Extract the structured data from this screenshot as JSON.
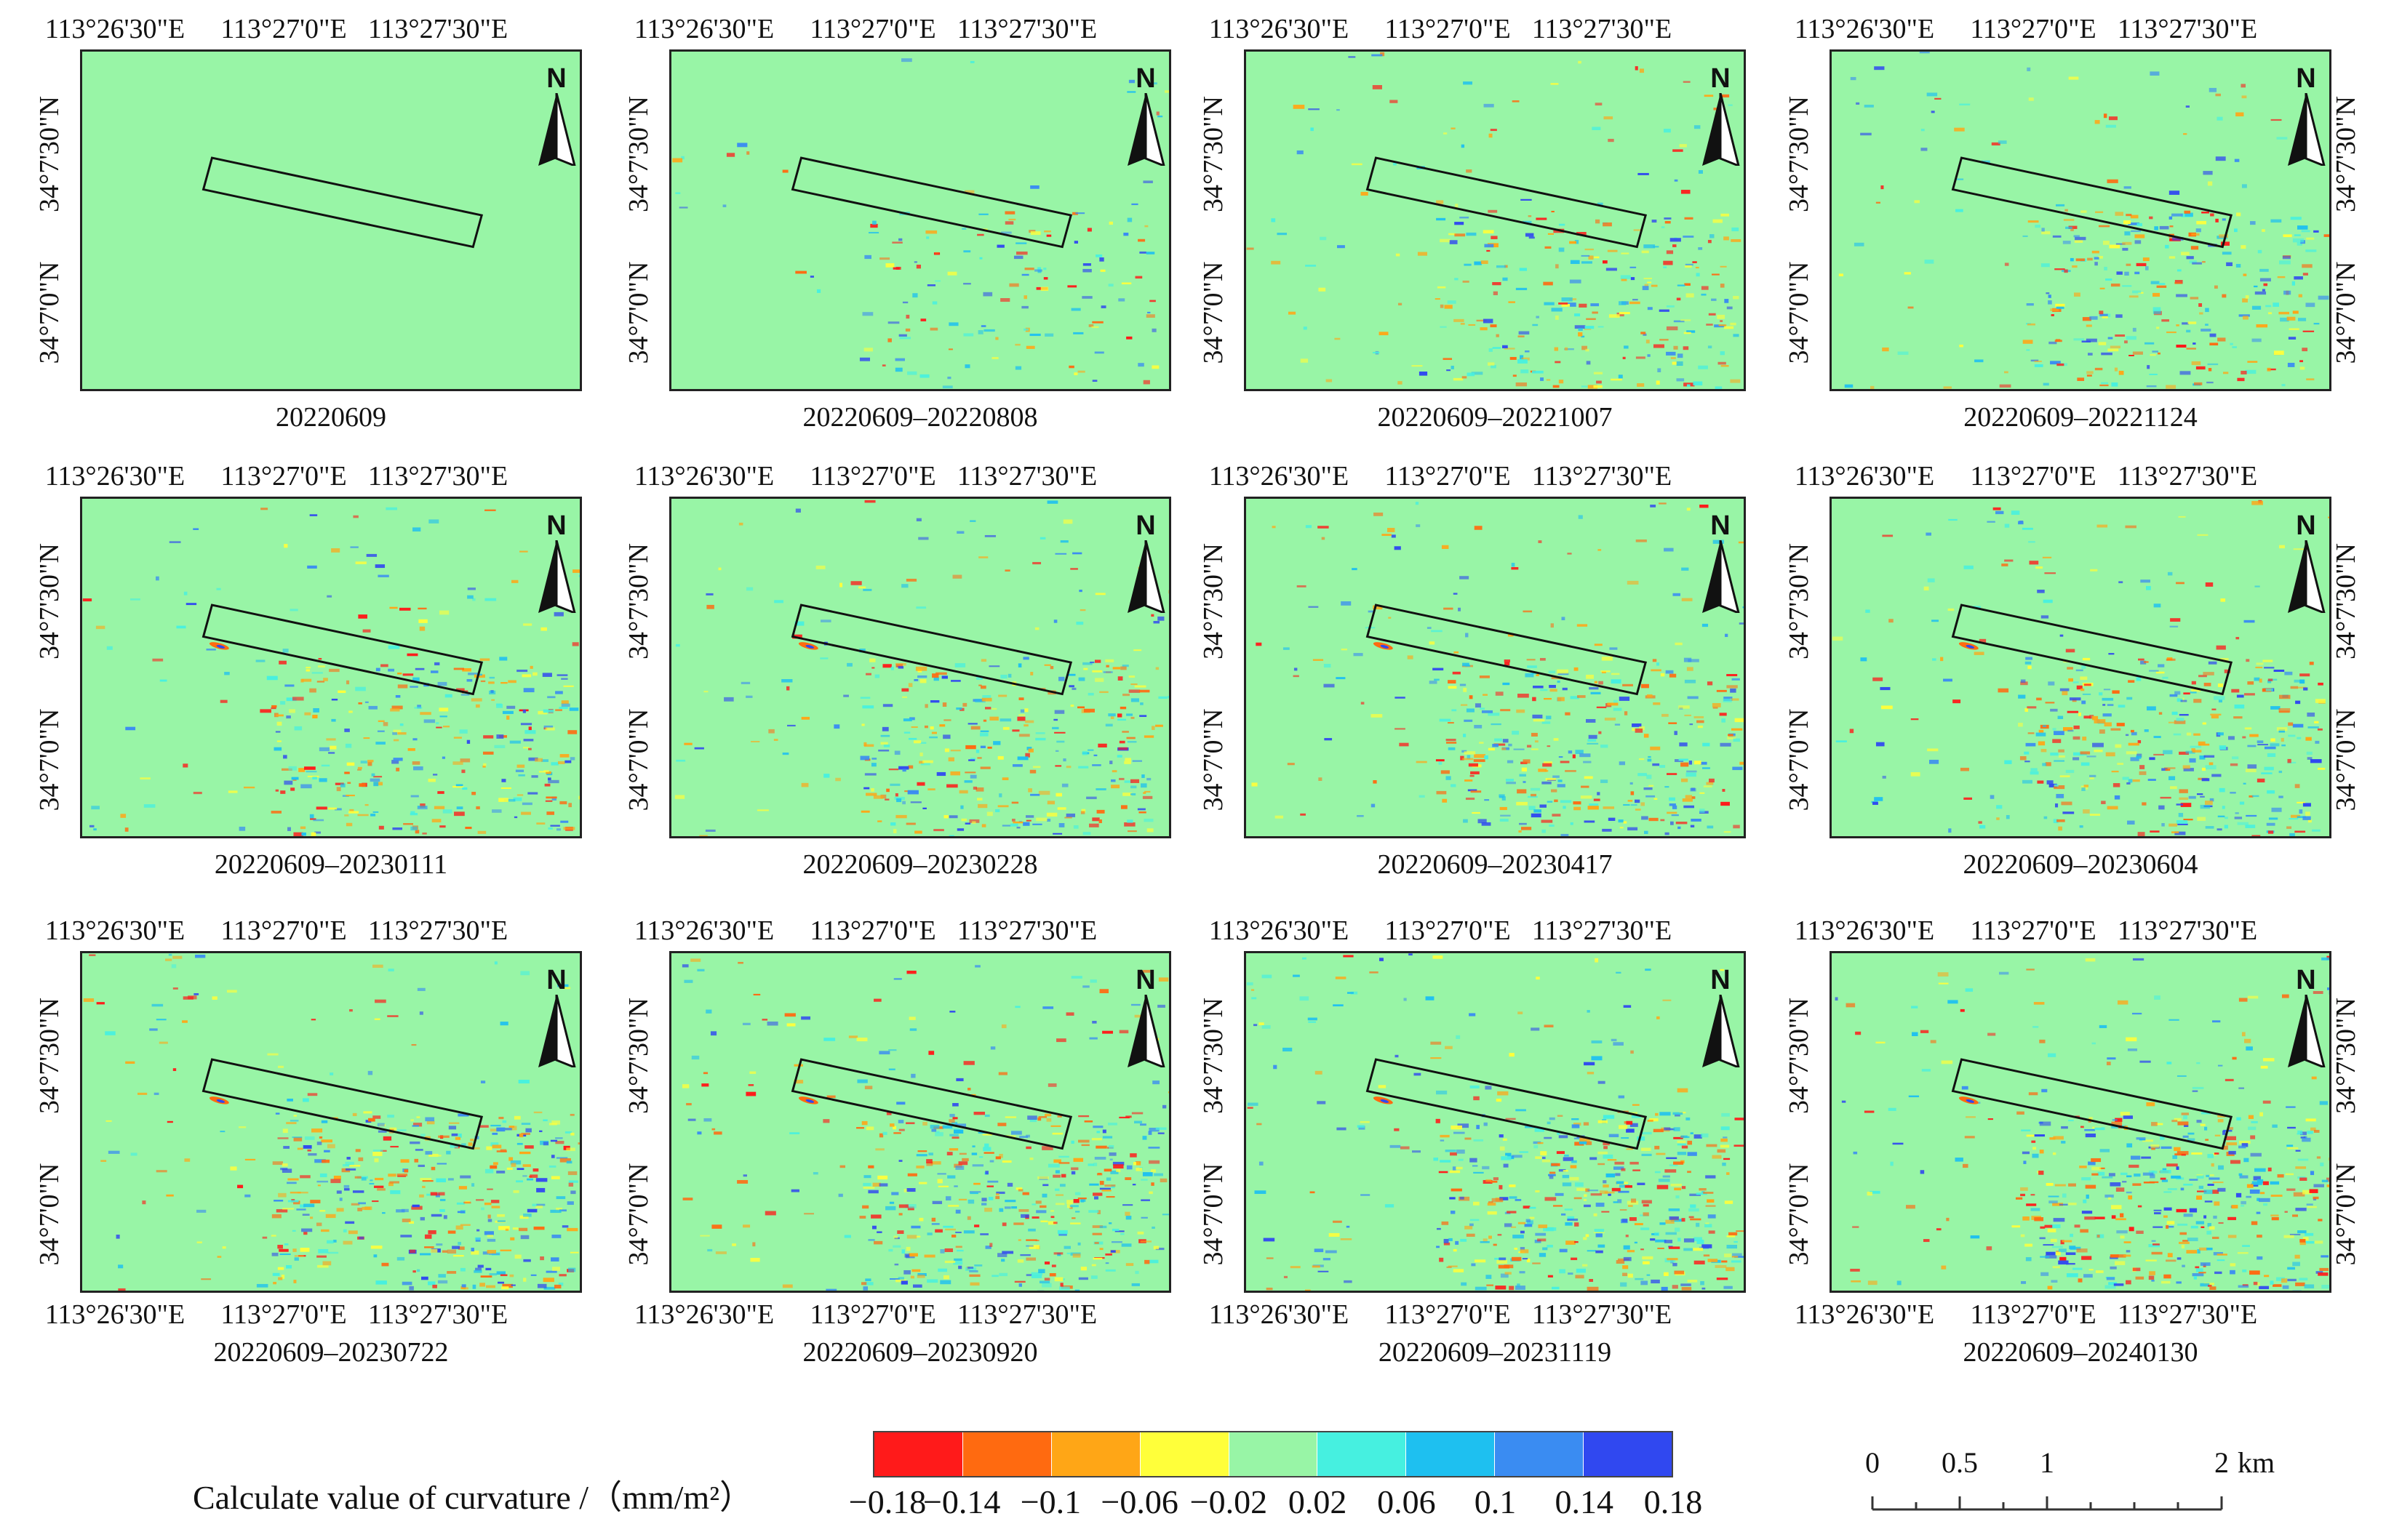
{
  "figure": {
    "lon_ticks": [
      "113°26'30\"E",
      "113°27'0\"E",
      "113°27'30\"E"
    ],
    "lat_ticks": [
      "34°7'30\"N",
      "34°7'0\"N"
    ],
    "north_label": "N",
    "panels": [
      {
        "date": "20220609",
        "intensity": 0.0
      },
      {
        "date": "20220609–20220808",
        "intensity": 0.3
      },
      {
        "date": "20220609–20221007",
        "intensity": 0.6
      },
      {
        "date": "20220609–20221124",
        "intensity": 0.65
      },
      {
        "date": "20220609–20230111",
        "intensity": 0.7
      },
      {
        "date": "20220609–20230228",
        "intensity": 0.75
      },
      {
        "date": "20220609–20230417",
        "intensity": 0.8
      },
      {
        "date": "20220609–20230604",
        "intensity": 0.85
      },
      {
        "date": "20220609–20230722",
        "intensity": 0.9
      },
      {
        "date": "20220609–20230920",
        "intensity": 0.95
      },
      {
        "date": "20220609–20231119",
        "intensity": 1.0
      },
      {
        "date": "20220609–20240130",
        "intensity": 1.0
      }
    ]
  },
  "legend": {
    "title": "Calculate value of curvature /（mm/m²）",
    "ticks": [
      "−0.18",
      "−0.14",
      "−0.1",
      "−0.06",
      "−0.02",
      "0.02",
      "0.06",
      "0.1",
      "0.14",
      "0.18"
    ],
    "colors": [
      "#ff1a1a",
      "#ff6a10",
      "#ffa616",
      "#ffff3a",
      "#98f5a6",
      "#46f0e0",
      "#1ec0f0",
      "#3a8cf2",
      "#3048f0"
    ]
  },
  "scalebar": {
    "labels": [
      "0",
      "0.5",
      "1",
      "2"
    ],
    "unit": "km"
  },
  "colors": {
    "background_field": "#98f5a6",
    "frame": "#222222"
  }
}
